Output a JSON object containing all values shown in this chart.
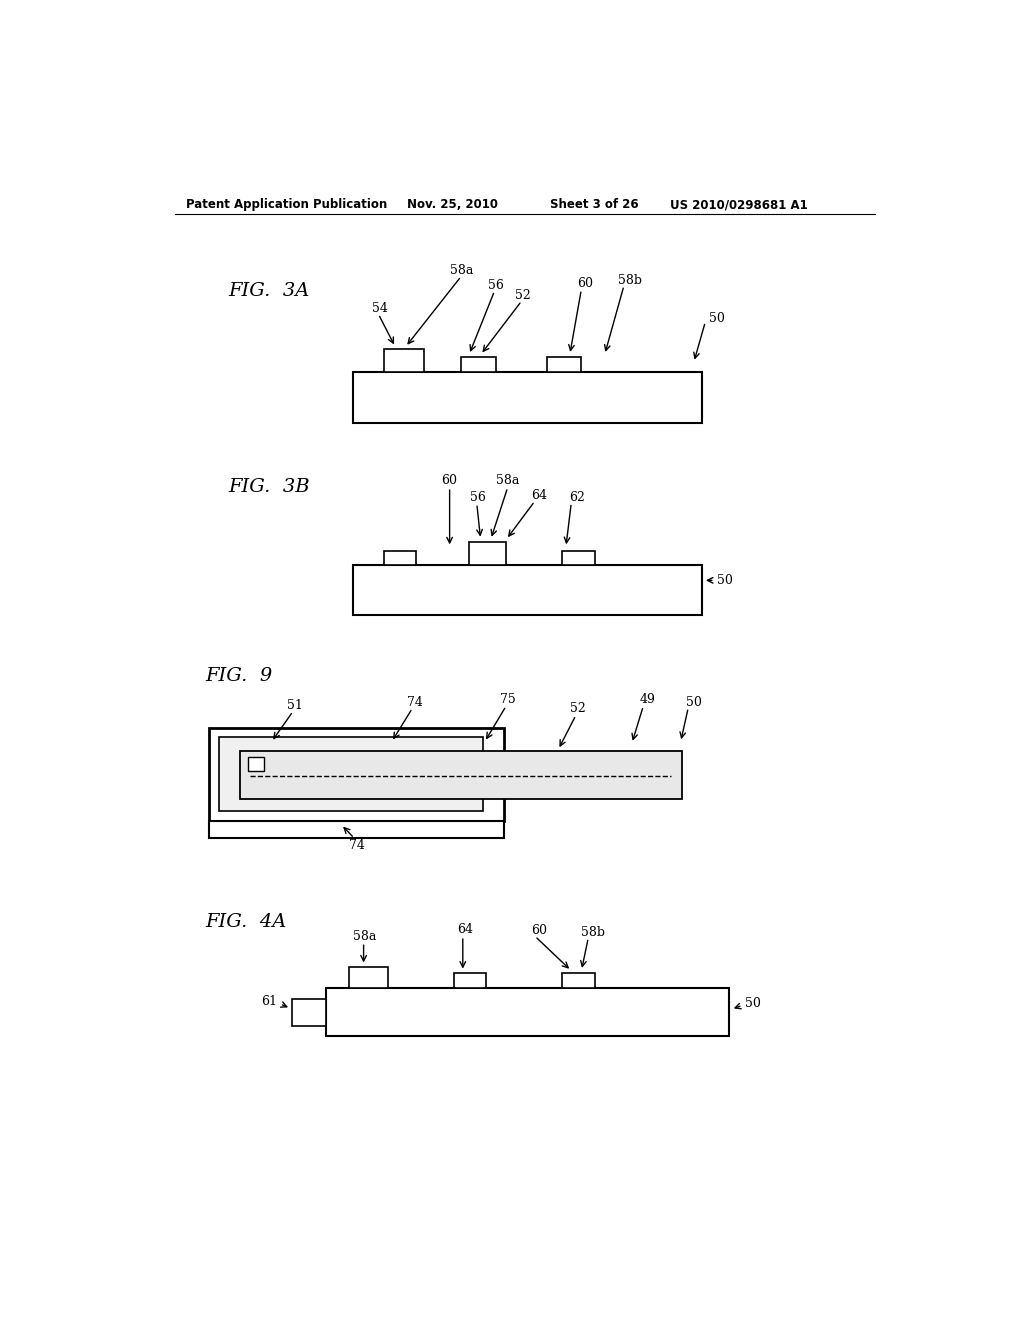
{
  "background_color": "#ffffff",
  "header_text": "Patent Application Publication",
  "header_date": "Nov. 25, 2010",
  "header_sheet": "Sheet 3 of 26",
  "header_patent": "US 2010/0298681 A1"
}
